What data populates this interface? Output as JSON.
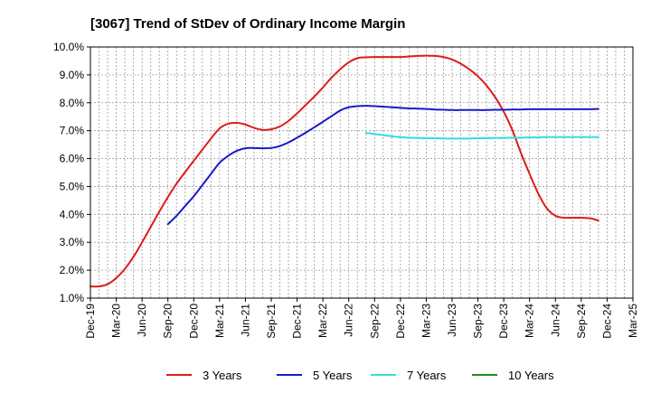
{
  "chart_data": {
    "type": "line",
    "title": "[3067]  Trend of StDev of Ordinary Income Margin",
    "xlabel": "",
    "ylabel": "",
    "ylim": [
      1.0,
      10.0
    ],
    "yticks": [
      "1.0%",
      "2.0%",
      "3.0%",
      "4.0%",
      "5.0%",
      "6.0%",
      "7.0%",
      "8.0%",
      "9.0%",
      "10.0%"
    ],
    "xticks": [
      "Dec-19",
      "Mar-20",
      "Jun-20",
      "Sep-20",
      "Dec-20",
      "Mar-21",
      "Jun-21",
      "Sep-21",
      "Dec-21",
      "Mar-22",
      "Jun-22",
      "Sep-22",
      "Dec-22",
      "Mar-23",
      "Jun-23",
      "Sep-23",
      "Dec-23",
      "Mar-24",
      "Jun-24",
      "Sep-24",
      "Dec-24",
      "Mar-25"
    ],
    "grid": true,
    "legend_position": "bottom",
    "series": [
      {
        "name": "3 Years",
        "color": "#dd1c1c",
        "points": [
          [
            "Dec-19",
            1.42
          ],
          [
            "Jan-20",
            1.42
          ],
          [
            "Feb-20",
            1.5
          ],
          [
            "Mar-20",
            1.72
          ],
          [
            "Apr-20",
            2.05
          ],
          [
            "May-20",
            2.48
          ],
          [
            "Jun-20",
            3.0
          ],
          [
            "Jul-20",
            3.55
          ],
          [
            "Aug-20",
            4.1
          ],
          [
            "Sep-20",
            4.62
          ],
          [
            "Oct-20",
            5.1
          ],
          [
            "Nov-20",
            5.52
          ],
          [
            "Dec-20",
            5.92
          ],
          [
            "Jan-21",
            6.32
          ],
          [
            "Feb-21",
            6.72
          ],
          [
            "Mar-21",
            7.08
          ],
          [
            "Apr-21",
            7.25
          ],
          [
            "May-21",
            7.28
          ],
          [
            "Jun-21",
            7.22
          ],
          [
            "Jul-21",
            7.1
          ],
          [
            "Aug-21",
            7.03
          ],
          [
            "Sep-21",
            7.05
          ],
          [
            "Oct-21",
            7.15
          ],
          [
            "Nov-21",
            7.35
          ],
          [
            "Dec-21",
            7.62
          ],
          [
            "Jan-22",
            7.92
          ],
          [
            "Feb-22",
            8.22
          ],
          [
            "Mar-22",
            8.55
          ],
          [
            "Apr-22",
            8.9
          ],
          [
            "May-22",
            9.2
          ],
          [
            "Jun-22",
            9.45
          ],
          [
            "Jul-22",
            9.6
          ],
          [
            "Aug-22",
            9.63
          ],
          [
            "Sep-22",
            9.64
          ],
          [
            "Oct-22",
            9.64
          ],
          [
            "Nov-22",
            9.64
          ],
          [
            "Dec-22",
            9.64
          ],
          [
            "Jan-23",
            9.66
          ],
          [
            "Feb-23",
            9.68
          ],
          [
            "Mar-23",
            9.69
          ],
          [
            "Apr-23",
            9.68
          ],
          [
            "May-23",
            9.64
          ],
          [
            "Jun-23",
            9.55
          ],
          [
            "Jul-23",
            9.4
          ],
          [
            "Aug-23",
            9.2
          ],
          [
            "Sep-23",
            8.95
          ],
          [
            "Oct-23",
            8.62
          ],
          [
            "Nov-23",
            8.2
          ],
          [
            "Dec-23",
            7.68
          ],
          [
            "Jan-24",
            7.02
          ],
          [
            "Feb-24",
            6.2
          ],
          [
            "Mar-24",
            5.45
          ],
          [
            "Apr-24",
            4.75
          ],
          [
            "May-24",
            4.22
          ],
          [
            "Jun-24",
            3.95
          ],
          [
            "Jul-24",
            3.88
          ],
          [
            "Aug-24",
            3.88
          ],
          [
            "Sep-24",
            3.88
          ],
          [
            "Oct-24",
            3.86
          ],
          [
            "Nov-24",
            3.78
          ]
        ]
      },
      {
        "name": "5 Years",
        "color": "#1a1acc",
        "points": [
          [
            "Sep-20",
            3.65
          ],
          [
            "Oct-20",
            3.95
          ],
          [
            "Nov-20",
            4.3
          ],
          [
            "Dec-20",
            4.65
          ],
          [
            "Jan-21",
            5.05
          ],
          [
            "Feb-21",
            5.45
          ],
          [
            "Mar-21",
            5.85
          ],
          [
            "Apr-21",
            6.1
          ],
          [
            "May-21",
            6.28
          ],
          [
            "Jun-21",
            6.37
          ],
          [
            "Jul-21",
            6.38
          ],
          [
            "Aug-21",
            6.37
          ],
          [
            "Sep-21",
            6.38
          ],
          [
            "Oct-21",
            6.45
          ],
          [
            "Nov-21",
            6.58
          ],
          [
            "Dec-21",
            6.75
          ],
          [
            "Jan-22",
            6.93
          ],
          [
            "Feb-22",
            7.12
          ],
          [
            "Mar-22",
            7.32
          ],
          [
            "Apr-22",
            7.52
          ],
          [
            "May-22",
            7.72
          ],
          [
            "Jun-22",
            7.84
          ],
          [
            "Jul-22",
            7.88
          ],
          [
            "Aug-22",
            7.89
          ],
          [
            "Sep-22",
            7.88
          ],
          [
            "Oct-22",
            7.86
          ],
          [
            "Nov-22",
            7.84
          ],
          [
            "Dec-22",
            7.82
          ],
          [
            "Jan-23",
            7.8
          ],
          [
            "Feb-23",
            7.79
          ],
          [
            "Mar-23",
            7.78
          ],
          [
            "Apr-23",
            7.76
          ],
          [
            "May-23",
            7.75
          ],
          [
            "Jun-23",
            7.74
          ],
          [
            "Jul-23",
            7.74
          ],
          [
            "Aug-23",
            7.74
          ],
          [
            "Sep-23",
            7.74
          ],
          [
            "Oct-23",
            7.74
          ],
          [
            "Nov-23",
            7.75
          ],
          [
            "Dec-23",
            7.75
          ],
          [
            "Jan-24",
            7.76
          ],
          [
            "Feb-24",
            7.76
          ],
          [
            "Mar-24",
            7.77
          ],
          [
            "Apr-24",
            7.77
          ],
          [
            "May-24",
            7.77
          ],
          [
            "Jun-24",
            7.77
          ],
          [
            "Jul-24",
            7.77
          ],
          [
            "Aug-24",
            7.77
          ],
          [
            "Sep-24",
            7.77
          ],
          [
            "Oct-24",
            7.77
          ],
          [
            "Nov-24",
            7.78
          ]
        ]
      },
      {
        "name": "7 Years",
        "color": "#33dddd",
        "points": [
          [
            "Aug-22",
            6.92
          ],
          [
            "Sep-22",
            6.88
          ],
          [
            "Oct-22",
            6.84
          ],
          [
            "Nov-22",
            6.8
          ],
          [
            "Dec-22",
            6.77
          ],
          [
            "Jan-23",
            6.75
          ],
          [
            "Feb-23",
            6.74
          ],
          [
            "Mar-23",
            6.73
          ],
          [
            "Apr-23",
            6.73
          ],
          [
            "May-23",
            6.72
          ],
          [
            "Jun-23",
            6.72
          ],
          [
            "Jul-23",
            6.72
          ],
          [
            "Aug-23",
            6.72
          ],
          [
            "Sep-23",
            6.73
          ],
          [
            "Oct-23",
            6.73
          ],
          [
            "Nov-23",
            6.74
          ],
          [
            "Dec-23",
            6.74
          ],
          [
            "Jan-24",
            6.75
          ],
          [
            "Feb-24",
            6.75
          ],
          [
            "Mar-24",
            6.76
          ],
          [
            "Apr-24",
            6.76
          ],
          [
            "May-24",
            6.77
          ],
          [
            "Jun-24",
            6.77
          ],
          [
            "Jul-24",
            6.77
          ],
          [
            "Aug-24",
            6.77
          ],
          [
            "Sep-24",
            6.77
          ],
          [
            "Oct-24",
            6.77
          ],
          [
            "Nov-24",
            6.77
          ]
        ]
      },
      {
        "name": "10 Years",
        "color": "#228b22",
        "points": []
      }
    ]
  }
}
